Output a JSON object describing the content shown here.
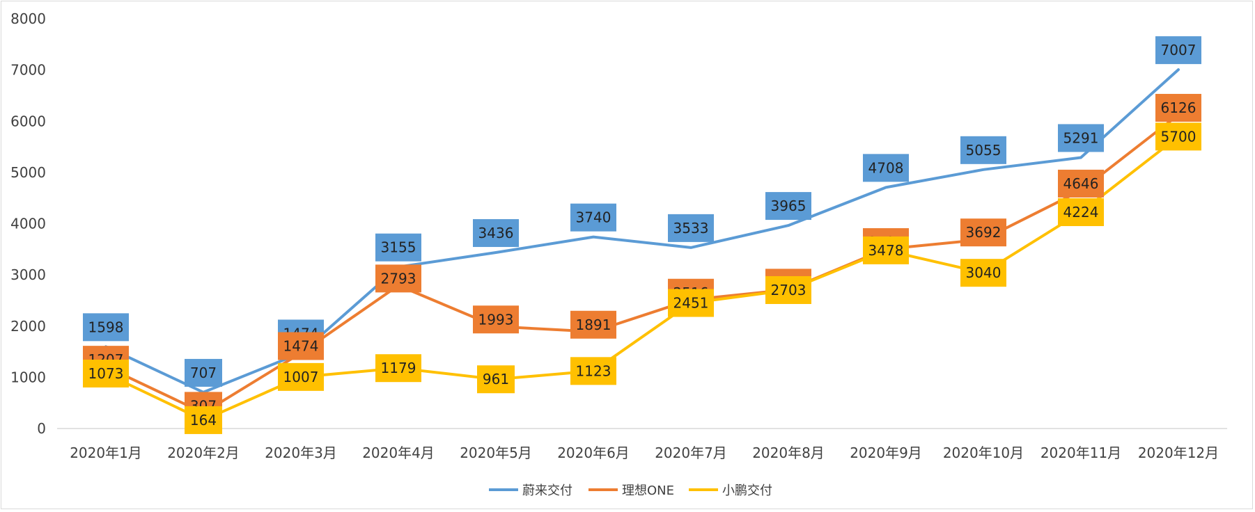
{
  "chart_data": {
    "type": "line",
    "categories": [
      "2020年1月",
      "2020年2月",
      "2020年3月",
      "2020年4月",
      "2020年5月",
      "2020年6月",
      "2020年7月",
      "2020年8月",
      "2020年9月",
      "2020年10月",
      "2020年11月",
      "2020年12月"
    ],
    "ylim": [
      0,
      8000
    ],
    "yticks": [
      0,
      1000,
      2000,
      3000,
      4000,
      5000,
      6000,
      7000,
      8000
    ],
    "grid": false,
    "legend_position": "bottom",
    "data_labels": true,
    "series": [
      {
        "name": "蔚来交付",
        "color": "#5b9bd5",
        "values": [
          1598,
          707,
          1474,
          3155,
          3436,
          3740,
          3533,
          3965,
          4708,
          5055,
          5291,
          7007
        ]
      },
      {
        "name": "理想ONE",
        "color": "#ed7d31",
        "values": [
          1207,
          307,
          1474,
          2793,
          1993,
          1891,
          2516,
          2711,
          3504,
          3692,
          4646,
          6126
        ]
      },
      {
        "name": "小鹏交付",
        "color": "#ffc000",
        "values": [
          1073,
          164,
          1007,
          1179,
          961,
          1123,
          2451,
          2703,
          3478,
          3040,
          4224,
          5700
        ]
      }
    ]
  }
}
